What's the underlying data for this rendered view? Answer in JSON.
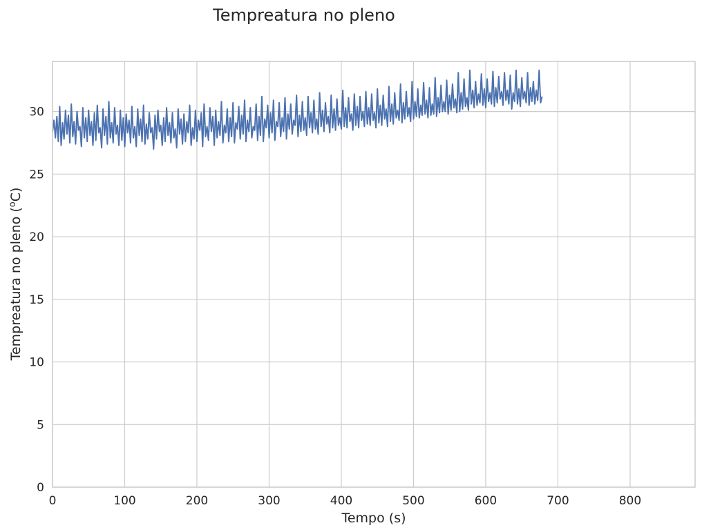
{
  "chart_data": {
    "type": "line",
    "title": "Tempreatura no pleno",
    "xlabel": "Tempo (s)",
    "ylabel": "Tempreatura no pleno (",
    "ylabel_sup": "o",
    "ylabel_end": "C)",
    "xlim": [
      0,
      890
    ],
    "ylim": [
      0,
      34
    ],
    "xticks": [
      0,
      100,
      200,
      300,
      400,
      500,
      600,
      700,
      800
    ],
    "yticks": [
      0,
      5,
      10,
      15,
      20,
      25,
      30
    ],
    "grid": true,
    "series": [
      {
        "color": "#4c72b0",
        "x_start": 0,
        "x_step": 2,
        "values": [
          28.4,
          29.3,
          27.9,
          29.6,
          27.6,
          30.4,
          27.3,
          29.1,
          27.8,
          30.1,
          28.2,
          29.7,
          27.5,
          30.6,
          28,
          29.2,
          27.4,
          30,
          28.5,
          28.8,
          27.2,
          30.3,
          27.9,
          29.5,
          27.6,
          30.1,
          28.1,
          29.2,
          27.3,
          29.9,
          27.7,
          30.5,
          28.3,
          28.7,
          27.1,
          30.2,
          28.1,
          29.6,
          27.4,
          30.8,
          27.9,
          29.1,
          27.5,
          30.3,
          28.2,
          28.9,
          27.3,
          30.1,
          27.7,
          29.5,
          27.2,
          29.8,
          28.3,
          29.3,
          27.5,
          30.4,
          27.9,
          28.8,
          27.2,
          30.2,
          28.1,
          29.4,
          27.6,
          30.5,
          27.4,
          29,
          27.8,
          29.9,
          28.3,
          28.7,
          27,
          29.7,
          27.8,
          30.1,
          28.4,
          28.9,
          27.3,
          29.5,
          27.6,
          30.3,
          28.1,
          29.1,
          27.5,
          29.9,
          27.9,
          28.6,
          27.1,
          30.2,
          28.2,
          29.4,
          27.4,
          29.8,
          27.6,
          29.2,
          28.3,
          30.5,
          27.3,
          28.7,
          27.8,
          30.1,
          27.6,
          29.3,
          28.5,
          29.9,
          27.2,
          30.6,
          28,
          28.8,
          27.7,
          30.3,
          28.4,
          29.6,
          27.3,
          30.1,
          27.9,
          29.2,
          28.1,
          30.8,
          27.5,
          28.9,
          28.3,
          30.2,
          27.6,
          29.5,
          28,
          30.7,
          27.5,
          29.1,
          28.6,
          30.4,
          27.8,
          29.7,
          28.2,
          30.9,
          27.6,
          29.3,
          28.4,
          30.3,
          27.9,
          28.8,
          28.5,
          30.6,
          27.7,
          29.6,
          28.1,
          31.2,
          27.6,
          29.4,
          28.7,
          30.5,
          27.9,
          29.9,
          28.3,
          30.9,
          27.7,
          29.2,
          28.8,
          30.7,
          28,
          29.5,
          28.4,
          31.1,
          27.8,
          29.8,
          28.6,
          30.6,
          28.2,
          29.3,
          28.9,
          31.3,
          28,
          29.7,
          28.4,
          30.8,
          28.5,
          29.5,
          28.1,
          31.2,
          28.7,
          29.9,
          28.3,
          30.9,
          28.6,
          29.4,
          28.2,
          31.5,
          28.8,
          30.1,
          28.4,
          30.7,
          29,
          29.6,
          28.3,
          31.3,
          28.7,
          30.2,
          28.5,
          31,
          28.9,
          29.5,
          28.6,
          31.7,
          28.8,
          30.3,
          28.7,
          31.1,
          29.2,
          29.8,
          28.5,
          31.4,
          28.9,
          30.4,
          28.7,
          31.2,
          29.3,
          30,
          28.8,
          31.6,
          29,
          30.3,
          28.9,
          31.4,
          29.3,
          29.9,
          28.7,
          31.8,
          29.1,
          30.5,
          28.9,
          31.3,
          29.4,
          30.2,
          28.8,
          32,
          29.2,
          30.6,
          29,
          31.5,
          29.5,
          30.1,
          29.3,
          32.2,
          29.1,
          30.7,
          29.4,
          31.6,
          29.6,
          30.3,
          29.2,
          32.4,
          29.4,
          30.8,
          29.6,
          31.8,
          29.5,
          30.5,
          29.7,
          32.3,
          29.8,
          30.9,
          29.5,
          31.9,
          29.7,
          30.6,
          29.8,
          32.7,
          29.6,
          31.1,
          29.9,
          32.1,
          30,
          30.8,
          30,
          32.5,
          29.8,
          31.3,
          30.1,
          32.2,
          30.3,
          31,
          29.9,
          33.1,
          30,
          31.5,
          30.2,
          32.6,
          30.4,
          31.1,
          30.1,
          33.3,
          30.6,
          31.7,
          30.3,
          32.4,
          30.5,
          31.4,
          30.7,
          33,
          30.5,
          31.8,
          30.3,
          32.6,
          30.8,
          31.5,
          30.6,
          33.2,
          30.4,
          31.9,
          30.7,
          32.8,
          31,
          31.6,
          30.5,
          33.1,
          30.9,
          31.7,
          30.6,
          32.9,
          30.2,
          31.5,
          30.8,
          33.3,
          30.6,
          31.8,
          30.4,
          32.7,
          31,
          31.6,
          30.7,
          33.1,
          30.5,
          31.9,
          30.8,
          32.4,
          30.6,
          31.7,
          30.9,
          33.3,
          30.7,
          31.2
        ]
      }
    ]
  }
}
